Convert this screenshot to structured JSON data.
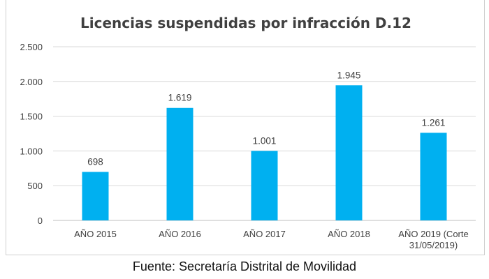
{
  "chart_data": {
    "type": "bar",
    "title": "Licencias suspendidas por infracción D.12",
    "categories": [
      "AÑO 2015",
      "AÑO 2016",
      "AÑO 2017",
      "AÑO 2018",
      "AÑO 2019 (Corte 31/05/2019)"
    ],
    "category_lines": [
      [
        "AÑO 2015"
      ],
      [
        "AÑO 2016"
      ],
      [
        "AÑO 2017"
      ],
      [
        "AÑO 2018"
      ],
      [
        "AÑO 2019 (Corte",
        "31/05/2019)"
      ]
    ],
    "values": [
      698,
      1619,
      1001,
      1945,
      1261
    ],
    "data_labels": [
      "698",
      "1.619",
      "1.001",
      "1.945",
      "1.261"
    ],
    "y_ticks": [
      0,
      500,
      1000,
      1500,
      2000,
      2500
    ],
    "y_tick_labels": [
      "0",
      "500",
      "1.000",
      "1.500",
      "2.000",
      "2.500"
    ],
    "ylim": [
      0,
      2500
    ],
    "grid": true,
    "bar_color": "#00B0F0",
    "xlabel": "",
    "ylabel": ""
  },
  "source_note": "Fuente: Secretaría Distrital de Movilidad"
}
